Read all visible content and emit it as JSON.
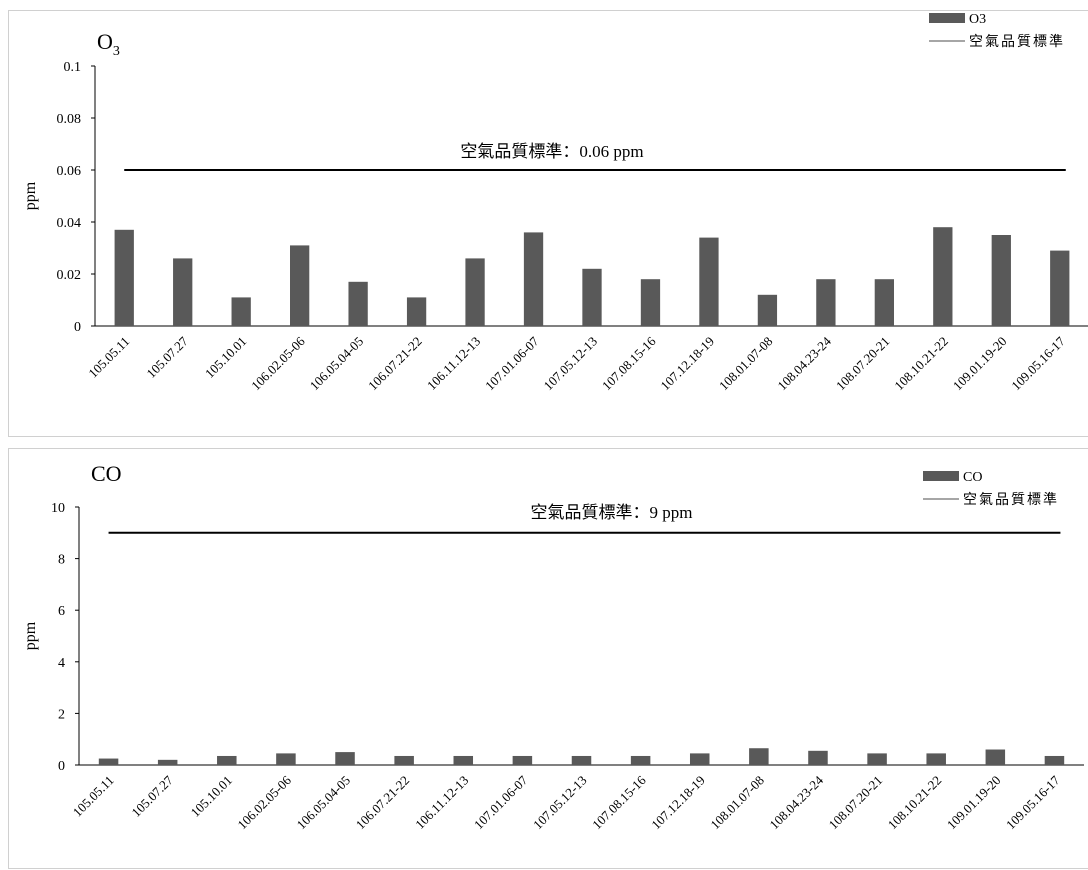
{
  "chart_data": [
    {
      "type": "bar",
      "title": "O",
      "title_sub": "3",
      "ylabel": "ppm",
      "ylim": [
        0,
        0.1
      ],
      "yticks": [
        "0",
        "0.02",
        "0.04",
        "0.06",
        "0.08",
        "0.1"
      ],
      "categories": [
        "105.05.11",
        "105.07.27",
        "105.10.01",
        "106.02.05-06",
        "106.05.04-05",
        "106.07.21-22",
        "106.11.12-13",
        "107.01.06-07",
        "107.05.12-13",
        "107.08.15-16",
        "107.12.18-19",
        "108.01.07-08",
        "108.04.23-24",
        "108.07.20-21",
        "108.10.21-22",
        "109.01.19-20",
        "109.05.16-17"
      ],
      "series": [
        {
          "name": "O3",
          "type": "bar",
          "color": "#595959",
          "values": [
            0.037,
            0.026,
            0.011,
            0.031,
            0.017,
            0.011,
            0.026,
            0.036,
            0.022,
            0.018,
            0.034,
            0.012,
            0.018,
            0.018,
            0.038,
            0.035,
            0.029
          ]
        },
        {
          "name": "空氣品質標準",
          "type": "line",
          "color": "#000000",
          "legend_color": "#a6a6a6",
          "value": 0.06
        }
      ],
      "annotation": "空氣品質標準：0.06 ppm",
      "legend": "top-right"
    },
    {
      "type": "bar",
      "title": "CO",
      "title_sub": "",
      "ylabel": "ppm",
      "ylim": [
        0,
        10
      ],
      "yticks": [
        "0",
        "2",
        "4",
        "6",
        "8",
        "10"
      ],
      "categories": [
        "105.05.11",
        "105.07.27",
        "105.10.01",
        "106.02.05-06",
        "106.05.04-05",
        "106.07.21-22",
        "106.11.12-13",
        "107.01.06-07",
        "107.05.12-13",
        "107.08.15-16",
        "107.12.18-19",
        "108.01.07-08",
        "108.04.23-24",
        "108.07.20-21",
        "108.10.21-22",
        "109.01.19-20",
        "109.05.16-17"
      ],
      "series": [
        {
          "name": "CO",
          "type": "bar",
          "color": "#595959",
          "values": [
            0.25,
            0.2,
            0.35,
            0.45,
            0.5,
            0.35,
            0.35,
            0.35,
            0.35,
            0.35,
            0.45,
            0.65,
            0.55,
            0.45,
            0.45,
            0.6,
            0.35
          ]
        },
        {
          "name": "空氣品質標準",
          "type": "line",
          "color": "#000000",
          "legend_color": "#a6a6a6",
          "value": 9
        }
      ],
      "annotation": "空氣品質標準：9 ppm",
      "legend": "top-right"
    }
  ]
}
